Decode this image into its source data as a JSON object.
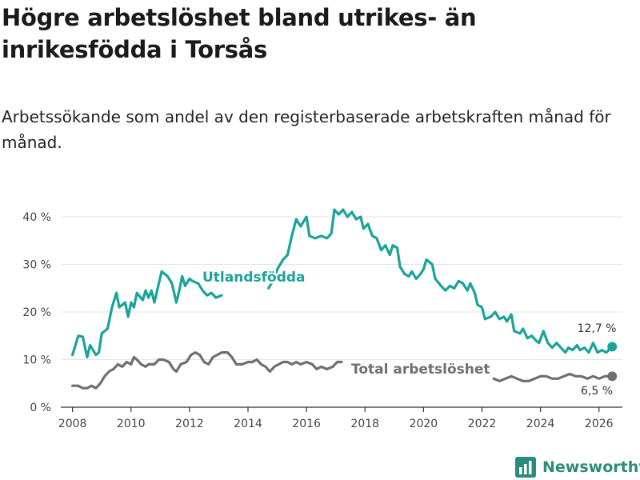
{
  "title": "Högre arbetslöshet bland utrikes- än inrikesfödda i Torsås",
  "subtitle": "Arbetssökande som andel av den registerbaserade arbetskraften månad för månad.",
  "brand": {
    "name": "Newsworthy",
    "icon": "bar-chart-logo-icon",
    "color": "#2a8c7c"
  },
  "chart_data": {
    "type": "line",
    "xlim": [
      2007.6,
      2026.8
    ],
    "ylim": [
      0,
      40
    ],
    "yticks": [
      0,
      10,
      20,
      30,
      40
    ],
    "ytick_labels": [
      "0 %",
      "10 %",
      "20 %",
      "30 %",
      "40 %"
    ],
    "xticks": [
      2008,
      2010,
      2012,
      2014,
      2016,
      2018,
      2020,
      2022,
      2024,
      2026
    ],
    "xtick_labels": [
      "2008",
      "2010",
      "2012",
      "2014",
      "2016",
      "2018",
      "2020",
      "2022",
      "2024",
      "2026"
    ],
    "series": [
      {
        "name": "Utlandsfödda",
        "label": "Utlandsfödda",
        "color": "#1aa39a",
        "end_label": "12,7 %",
        "points": [
          [
            2008.0,
            11.0
          ],
          [
            2008.2,
            15.0
          ],
          [
            2008.35,
            14.8
          ],
          [
            2008.5,
            10.5
          ],
          [
            2008.6,
            13.0
          ],
          [
            2008.8,
            11.0
          ],
          [
            2008.9,
            11.5
          ],
          [
            2009.0,
            15.5
          ],
          [
            2009.2,
            16.5
          ],
          [
            2009.35,
            21.0
          ],
          [
            2009.5,
            24.0
          ],
          [
            2009.6,
            21.0
          ],
          [
            2009.8,
            22.0
          ],
          [
            2009.9,
            19.0
          ],
          [
            2010.0,
            22.0
          ],
          [
            2010.1,
            21.0
          ],
          [
            2010.2,
            24.0
          ],
          [
            2010.4,
            22.5
          ],
          [
            2010.5,
            24.5
          ],
          [
            2010.6,
            23.0
          ],
          [
            2010.7,
            24.5
          ],
          [
            2010.8,
            22.0
          ],
          [
            2010.95,
            26.0
          ],
          [
            2011.05,
            28.5
          ],
          [
            2011.25,
            27.5
          ],
          [
            2011.4,
            26.0
          ],
          [
            2011.55,
            22.0
          ],
          [
            2011.65,
            24.5
          ],
          [
            2011.75,
            27.5
          ],
          [
            2011.85,
            25.5
          ],
          [
            2012.0,
            27.0
          ],
          [
            2012.1,
            26.5
          ],
          [
            2012.3,
            26.0
          ],
          [
            2012.45,
            24.5
          ],
          [
            2012.6,
            23.5
          ],
          [
            2012.75,
            24.0
          ],
          [
            2012.9,
            23.0
          ],
          [
            2013.1,
            23.5
          ],
          [
            2014.7,
            25.0
          ],
          [
            2014.9,
            27.0
          ],
          [
            2015.0,
            29.0
          ],
          [
            2015.2,
            31.0
          ],
          [
            2015.35,
            32.0
          ],
          [
            2015.5,
            36.0
          ],
          [
            2015.65,
            39.5
          ],
          [
            2015.8,
            38.0
          ],
          [
            2016.0,
            40.0
          ],
          [
            2016.1,
            36.0
          ],
          [
            2016.3,
            35.5
          ],
          [
            2016.5,
            36.0
          ],
          [
            2016.7,
            35.5
          ],
          [
            2016.85,
            36.5
          ],
          [
            2016.95,
            41.5
          ],
          [
            2017.1,
            40.5
          ],
          [
            2017.25,
            41.5
          ],
          [
            2017.4,
            40.0
          ],
          [
            2017.55,
            41.0
          ],
          [
            2017.7,
            39.5
          ],
          [
            2017.85,
            40.0
          ],
          [
            2017.95,
            37.5
          ],
          [
            2018.1,
            38.5
          ],
          [
            2018.25,
            36.0
          ],
          [
            2018.4,
            35.5
          ],
          [
            2018.55,
            33.0
          ],
          [
            2018.7,
            34.0
          ],
          [
            2018.85,
            32.0
          ],
          [
            2018.95,
            34.0
          ],
          [
            2019.1,
            33.5
          ],
          [
            2019.2,
            29.5
          ],
          [
            2019.35,
            28.0
          ],
          [
            2019.5,
            27.5
          ],
          [
            2019.6,
            28.5
          ],
          [
            2019.75,
            27.0
          ],
          [
            2019.9,
            28.0
          ],
          [
            2020.0,
            29.0
          ],
          [
            2020.1,
            31.0
          ],
          [
            2020.3,
            30.0
          ],
          [
            2020.4,
            27.0
          ],
          [
            2020.6,
            25.5
          ],
          [
            2020.75,
            24.5
          ],
          [
            2020.9,
            25.5
          ],
          [
            2021.05,
            25.0
          ],
          [
            2021.2,
            26.5
          ],
          [
            2021.35,
            26.0
          ],
          [
            2021.5,
            24.5
          ],
          [
            2021.6,
            26.0
          ],
          [
            2021.75,
            24.0
          ],
          [
            2021.85,
            21.5
          ],
          [
            2022.0,
            21.0
          ],
          [
            2022.1,
            18.5
          ],
          [
            2022.3,
            19.0
          ],
          [
            2022.45,
            20.0
          ],
          [
            2022.6,
            18.5
          ],
          [
            2022.75,
            19.0
          ],
          [
            2022.85,
            18.0
          ],
          [
            2023.0,
            19.5
          ],
          [
            2023.1,
            16.0
          ],
          [
            2023.3,
            15.5
          ],
          [
            2023.4,
            16.5
          ],
          [
            2023.55,
            14.5
          ],
          [
            2023.7,
            15.0
          ],
          [
            2023.85,
            14.0
          ],
          [
            2023.95,
            13.5
          ],
          [
            2024.1,
            16.0
          ],
          [
            2024.25,
            13.5
          ],
          [
            2024.4,
            12.5
          ],
          [
            2024.55,
            13.5
          ],
          [
            2024.7,
            12.5
          ],
          [
            2024.85,
            11.5
          ],
          [
            2024.95,
            12.5
          ],
          [
            2025.1,
            12.0
          ],
          [
            2025.25,
            13.0
          ],
          [
            2025.35,
            12.0
          ],
          [
            2025.5,
            12.5
          ],
          [
            2025.65,
            11.5
          ],
          [
            2025.8,
            13.5
          ],
          [
            2025.95,
            11.5
          ],
          [
            2026.1,
            12.0
          ],
          [
            2026.25,
            11.5
          ],
          [
            2026.45,
            12.7
          ]
        ]
      },
      {
        "name": "Total arbetslöshet",
        "label": "Total arbetslöshet",
        "color": "#6f6f6f",
        "end_label": "6,5 %",
        "points": [
          [
            2008.0,
            4.5
          ],
          [
            2008.2,
            4.5
          ],
          [
            2008.35,
            4.0
          ],
          [
            2008.5,
            4.0
          ],
          [
            2008.65,
            4.5
          ],
          [
            2008.8,
            4.0
          ],
          [
            2008.95,
            5.0
          ],
          [
            2009.1,
            6.5
          ],
          [
            2009.25,
            7.5
          ],
          [
            2009.4,
            8.0
          ],
          [
            2009.55,
            9.0
          ],
          [
            2009.7,
            8.5
          ],
          [
            2009.85,
            9.5
          ],
          [
            2010.0,
            9.0
          ],
          [
            2010.1,
            10.5
          ],
          [
            2010.2,
            10.0
          ],
          [
            2010.35,
            9.0
          ],
          [
            2010.5,
            8.5
          ],
          [
            2010.6,
            9.0
          ],
          [
            2010.8,
            9.0
          ],
          [
            2010.95,
            10.0
          ],
          [
            2011.1,
            10.0
          ],
          [
            2011.3,
            9.5
          ],
          [
            2011.45,
            8.0
          ],
          [
            2011.55,
            7.5
          ],
          [
            2011.7,
            9.0
          ],
          [
            2011.9,
            9.5
          ],
          [
            2012.05,
            11.0
          ],
          [
            2012.2,
            11.5
          ],
          [
            2012.35,
            11.0
          ],
          [
            2012.5,
            9.5
          ],
          [
            2012.65,
            9.0
          ],
          [
            2012.8,
            10.5
          ],
          [
            2012.95,
            11.0
          ],
          [
            2013.1,
            11.5
          ],
          [
            2013.3,
            11.5
          ],
          [
            2013.45,
            10.5
          ],
          [
            2013.6,
            9.0
          ],
          [
            2013.8,
            9.0
          ],
          [
            2014.0,
            9.5
          ],
          [
            2014.15,
            9.5
          ],
          [
            2014.3,
            10.0
          ],
          [
            2014.45,
            9.0
          ],
          [
            2014.6,
            8.5
          ],
          [
            2014.75,
            7.5
          ],
          [
            2014.9,
            8.5
          ],
          [
            2015.05,
            9.0
          ],
          [
            2015.2,
            9.5
          ],
          [
            2015.35,
            9.5
          ],
          [
            2015.5,
            9.0
          ],
          [
            2015.65,
            9.5
          ],
          [
            2015.8,
            9.0
          ],
          [
            2016.0,
            9.5
          ],
          [
            2016.2,
            9.0
          ],
          [
            2016.35,
            8.0
          ],
          [
            2016.5,
            8.5
          ],
          [
            2016.7,
            8.0
          ],
          [
            2016.9,
            8.5
          ],
          [
            2017.05,
            9.5
          ],
          [
            2017.2,
            9.5
          ],
          [
            2022.4,
            6.0
          ],
          [
            2022.6,
            5.5
          ],
          [
            2022.8,
            6.0
          ],
          [
            2023.0,
            6.5
          ],
          [
            2023.2,
            6.0
          ],
          [
            2023.4,
            5.5
          ],
          [
            2023.6,
            5.5
          ],
          [
            2023.8,
            6.0
          ],
          [
            2024.0,
            6.5
          ],
          [
            2024.2,
            6.5
          ],
          [
            2024.4,
            6.0
          ],
          [
            2024.6,
            6.0
          ],
          [
            2024.8,
            6.5
          ],
          [
            2025.0,
            7.0
          ],
          [
            2025.2,
            6.5
          ],
          [
            2025.4,
            6.5
          ],
          [
            2025.6,
            6.0
          ],
          [
            2025.8,
            6.5
          ],
          [
            2026.0,
            6.0
          ],
          [
            2026.2,
            6.5
          ],
          [
            2026.45,
            6.5
          ]
        ]
      }
    ]
  }
}
